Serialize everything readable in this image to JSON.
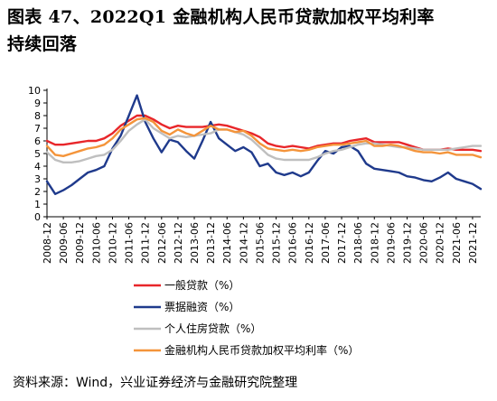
{
  "header": {
    "title_line1": "图表 47、2022Q1 金融机构人民币贷款加权平均利率",
    "title_line2": "持续回落"
  },
  "source": "资料来源：Wind，兴业证券经济与金融研究院整理",
  "chart_data": {
    "type": "line",
    "title": "图表 47、2022Q1 金融机构人民币贷款加权平均利率持续回落",
    "xlabel": "",
    "ylabel": "",
    "ylim": [
      0,
      10
    ],
    "yticks": [
      0,
      1,
      2,
      3,
      4,
      5,
      6,
      7,
      8,
      9,
      10
    ],
    "x_start": "2008-12",
    "x_end": "2022-03",
    "x_tick_labels": [
      "2008-12",
      "2009-06",
      "2009-12",
      "2010-06",
      "2010-12",
      "2011-06",
      "2011-12",
      "2012-06",
      "2012-12",
      "2013-06",
      "2013-12",
      "2014-06",
      "2014-12",
      "2015-06",
      "2015-12",
      "2016-06",
      "2016-12",
      "2017-06",
      "2017-12",
      "2018-06",
      "2018-12",
      "2019-06",
      "2019-12",
      "2020-06",
      "2020-12",
      "2021-06",
      "2021-12"
    ],
    "grid": false,
    "legend_position": "bottom",
    "series": [
      {
        "name": "一般贷款（%）",
        "color": "#e8262a",
        "points": [
          [
            "2008-12",
            6.0
          ],
          [
            "2009-03",
            5.7
          ],
          [
            "2009-06",
            5.7
          ],
          [
            "2009-09",
            5.8
          ],
          [
            "2009-12",
            5.9
          ],
          [
            "2010-03",
            6.0
          ],
          [
            "2010-06",
            6.0
          ],
          [
            "2010-09",
            6.2
          ],
          [
            "2010-12",
            6.6
          ],
          [
            "2011-03",
            7.2
          ],
          [
            "2011-06",
            7.6
          ],
          [
            "2011-09",
            8.0
          ],
          [
            "2011-12",
            8.0
          ],
          [
            "2012-03",
            7.7
          ],
          [
            "2012-06",
            7.3
          ],
          [
            "2012-09",
            7.0
          ],
          [
            "2012-12",
            7.2
          ],
          [
            "2013-03",
            7.1
          ],
          [
            "2013-06",
            7.1
          ],
          [
            "2013-09",
            7.1
          ],
          [
            "2013-12",
            7.2
          ],
          [
            "2014-03",
            7.3
          ],
          [
            "2014-06",
            7.2
          ],
          [
            "2014-09",
            7.0
          ],
          [
            "2014-12",
            6.8
          ],
          [
            "2015-03",
            6.6
          ],
          [
            "2015-06",
            6.3
          ],
          [
            "2015-09",
            5.8
          ],
          [
            "2015-12",
            5.6
          ],
          [
            "2016-03",
            5.5
          ],
          [
            "2016-06",
            5.6
          ],
          [
            "2016-09",
            5.5
          ],
          [
            "2016-12",
            5.4
          ],
          [
            "2017-03",
            5.6
          ],
          [
            "2017-06",
            5.7
          ],
          [
            "2017-09",
            5.8
          ],
          [
            "2017-12",
            5.8
          ],
          [
            "2018-03",
            6.0
          ],
          [
            "2018-06",
            6.1
          ],
          [
            "2018-09",
            6.2
          ],
          [
            "2018-12",
            5.9
          ],
          [
            "2019-03",
            5.9
          ],
          [
            "2019-06",
            5.9
          ],
          [
            "2019-09",
            5.9
          ],
          [
            "2019-12",
            5.7
          ],
          [
            "2020-03",
            5.5
          ],
          [
            "2020-06",
            5.3
          ],
          [
            "2020-09",
            5.3
          ],
          [
            "2020-12",
            5.3
          ],
          [
            "2021-03",
            5.4
          ],
          [
            "2021-06",
            5.3
          ],
          [
            "2021-09",
            5.3
          ],
          [
            "2021-12",
            5.3
          ],
          [
            "2022-03",
            5.2
          ]
        ]
      },
      {
        "name": "票据融资（%）",
        "color": "#1f3a8c",
        "points": [
          [
            "2008-12",
            2.8
          ],
          [
            "2009-03",
            1.8
          ],
          [
            "2009-06",
            2.1
          ],
          [
            "2009-09",
            2.5
          ],
          [
            "2009-12",
            3.0
          ],
          [
            "2010-03",
            3.5
          ],
          [
            "2010-06",
            3.7
          ],
          [
            "2010-09",
            4.0
          ],
          [
            "2010-12",
            5.4
          ],
          [
            "2011-03",
            6.4
          ],
          [
            "2011-06",
            8.0
          ],
          [
            "2011-09",
            9.6
          ],
          [
            "2011-12",
            7.5
          ],
          [
            "2012-03",
            6.2
          ],
          [
            "2012-06",
            5.1
          ],
          [
            "2012-09",
            6.1
          ],
          [
            "2012-12",
            5.9
          ],
          [
            "2013-03",
            5.2
          ],
          [
            "2013-06",
            4.6
          ],
          [
            "2013-09",
            6.0
          ],
          [
            "2013-12",
            7.5
          ],
          [
            "2014-03",
            6.2
          ],
          [
            "2014-06",
            5.7
          ],
          [
            "2014-09",
            5.2
          ],
          [
            "2014-12",
            5.5
          ],
          [
            "2015-03",
            5.1
          ],
          [
            "2015-06",
            4.0
          ],
          [
            "2015-09",
            4.2
          ],
          [
            "2015-12",
            3.5
          ],
          [
            "2016-03",
            3.3
          ],
          [
            "2016-06",
            3.5
          ],
          [
            "2016-09",
            3.2
          ],
          [
            "2016-12",
            3.5
          ],
          [
            "2017-03",
            4.4
          ],
          [
            "2017-06",
            5.2
          ],
          [
            "2017-09",
            5.0
          ],
          [
            "2017-12",
            5.5
          ],
          [
            "2018-03",
            5.6
          ],
          [
            "2018-06",
            5.2
          ],
          [
            "2018-09",
            4.2
          ],
          [
            "2018-12",
            3.8
          ],
          [
            "2019-03",
            3.7
          ],
          [
            "2019-06",
            3.6
          ],
          [
            "2019-09",
            3.5
          ],
          [
            "2019-12",
            3.2
          ],
          [
            "2020-03",
            3.1
          ],
          [
            "2020-06",
            2.9
          ],
          [
            "2020-09",
            2.8
          ],
          [
            "2020-12",
            3.1
          ],
          [
            "2021-03",
            3.5
          ],
          [
            "2021-06",
            3.0
          ],
          [
            "2021-09",
            2.8
          ],
          [
            "2021-12",
            2.6
          ],
          [
            "2022-03",
            2.2
          ]
        ]
      },
      {
        "name": "个人住房贷款（%）",
        "color": "#bfbfbf",
        "points": [
          [
            "2008-12",
            5.1
          ],
          [
            "2009-03",
            4.5
          ],
          [
            "2009-06",
            4.3
          ],
          [
            "2009-09",
            4.3
          ],
          [
            "2009-12",
            4.4
          ],
          [
            "2010-03",
            4.6
          ],
          [
            "2010-06",
            4.8
          ],
          [
            "2010-09",
            4.9
          ],
          [
            "2010-12",
            5.3
          ],
          [
            "2011-03",
            6.0
          ],
          [
            "2011-06",
            6.8
          ],
          [
            "2011-09",
            7.3
          ],
          [
            "2011-12",
            7.7
          ],
          [
            "2012-03",
            7.0
          ],
          [
            "2012-06",
            6.6
          ],
          [
            "2012-09",
            6.2
          ],
          [
            "2012-12",
            6.4
          ],
          [
            "2013-03",
            6.3
          ],
          [
            "2013-06",
            6.4
          ],
          [
            "2013-09",
            6.5
          ],
          [
            "2013-12",
            6.6
          ],
          [
            "2014-03",
            6.9
          ],
          [
            "2014-06",
            6.9
          ],
          [
            "2014-09",
            6.7
          ],
          [
            "2014-12",
            6.5
          ],
          [
            "2015-03",
            6.1
          ],
          [
            "2015-06",
            5.5
          ],
          [
            "2015-09",
            4.9
          ],
          [
            "2015-12",
            4.6
          ],
          [
            "2016-03",
            4.5
          ],
          [
            "2016-06",
            4.5
          ],
          [
            "2016-09",
            4.5
          ],
          [
            "2016-12",
            4.5
          ],
          [
            "2017-03",
            4.7
          ],
          [
            "2017-06",
            5.0
          ],
          [
            "2017-09",
            5.2
          ],
          [
            "2017-12",
            5.3
          ],
          [
            "2018-03",
            5.5
          ],
          [
            "2018-06",
            5.7
          ],
          [
            "2018-09",
            5.8
          ],
          [
            "2018-12",
            5.8
          ],
          [
            "2019-03",
            5.7
          ],
          [
            "2019-06",
            5.6
          ],
          [
            "2019-09",
            5.5
          ],
          [
            "2019-12",
            5.5
          ],
          [
            "2020-03",
            5.4
          ],
          [
            "2020-06",
            5.3
          ],
          [
            "2020-09",
            5.3
          ],
          [
            "2020-12",
            5.3
          ],
          [
            "2021-03",
            5.3
          ],
          [
            "2021-06",
            5.4
          ],
          [
            "2021-09",
            5.5
          ],
          [
            "2021-12",
            5.6
          ],
          [
            "2022-03",
            5.6
          ]
        ]
      },
      {
        "name": "金融机构人民币贷款加权平均利率（%）",
        "color": "#f4943a",
        "points": [
          [
            "2008-12",
            5.6
          ],
          [
            "2009-03",
            4.9
          ],
          [
            "2009-06",
            4.8
          ],
          [
            "2009-09",
            5.0
          ],
          [
            "2009-12",
            5.2
          ],
          [
            "2010-03",
            5.4
          ],
          [
            "2010-06",
            5.5
          ],
          [
            "2010-09",
            5.7
          ],
          [
            "2010-12",
            6.2
          ],
          [
            "2011-03",
            6.9
          ],
          [
            "2011-06",
            7.3
          ],
          [
            "2011-09",
            7.7
          ],
          [
            "2011-12",
            7.8
          ],
          [
            "2012-03",
            7.5
          ],
          [
            "2012-06",
            6.8
          ],
          [
            "2012-09",
            6.5
          ],
          [
            "2012-12",
            6.9
          ],
          [
            "2013-03",
            6.6
          ],
          [
            "2013-06",
            6.4
          ],
          [
            "2013-09",
            6.8
          ],
          [
            "2013-12",
            7.2
          ],
          [
            "2014-03",
            6.9
          ],
          [
            "2014-06",
            6.9
          ],
          [
            "2014-09",
            6.7
          ],
          [
            "2014-12",
            6.8
          ],
          [
            "2015-03",
            6.4
          ],
          [
            "2015-06",
            5.8
          ],
          [
            "2015-09",
            5.4
          ],
          [
            "2015-12",
            5.3
          ],
          [
            "2016-03",
            5.2
          ],
          [
            "2016-06",
            5.3
          ],
          [
            "2016-09",
            5.2
          ],
          [
            "2016-12",
            5.3
          ],
          [
            "2017-03",
            5.5
          ],
          [
            "2017-06",
            5.6
          ],
          [
            "2017-09",
            5.7
          ],
          [
            "2017-12",
            5.7
          ],
          [
            "2018-03",
            5.8
          ],
          [
            "2018-06",
            5.9
          ],
          [
            "2018-09",
            6.0
          ],
          [
            "2018-12",
            5.6
          ],
          [
            "2019-03",
            5.6
          ],
          [
            "2019-06",
            5.7
          ],
          [
            "2019-09",
            5.6
          ],
          [
            "2019-12",
            5.4
          ],
          [
            "2020-03",
            5.2
          ],
          [
            "2020-06",
            5.1
          ],
          [
            "2020-09",
            5.1
          ],
          [
            "2020-12",
            5.0
          ],
          [
            "2021-03",
            5.1
          ],
          [
            "2021-06",
            4.9
          ],
          [
            "2021-09",
            4.9
          ],
          [
            "2021-12",
            4.9
          ],
          [
            "2022-03",
            4.7
          ]
        ]
      }
    ]
  }
}
